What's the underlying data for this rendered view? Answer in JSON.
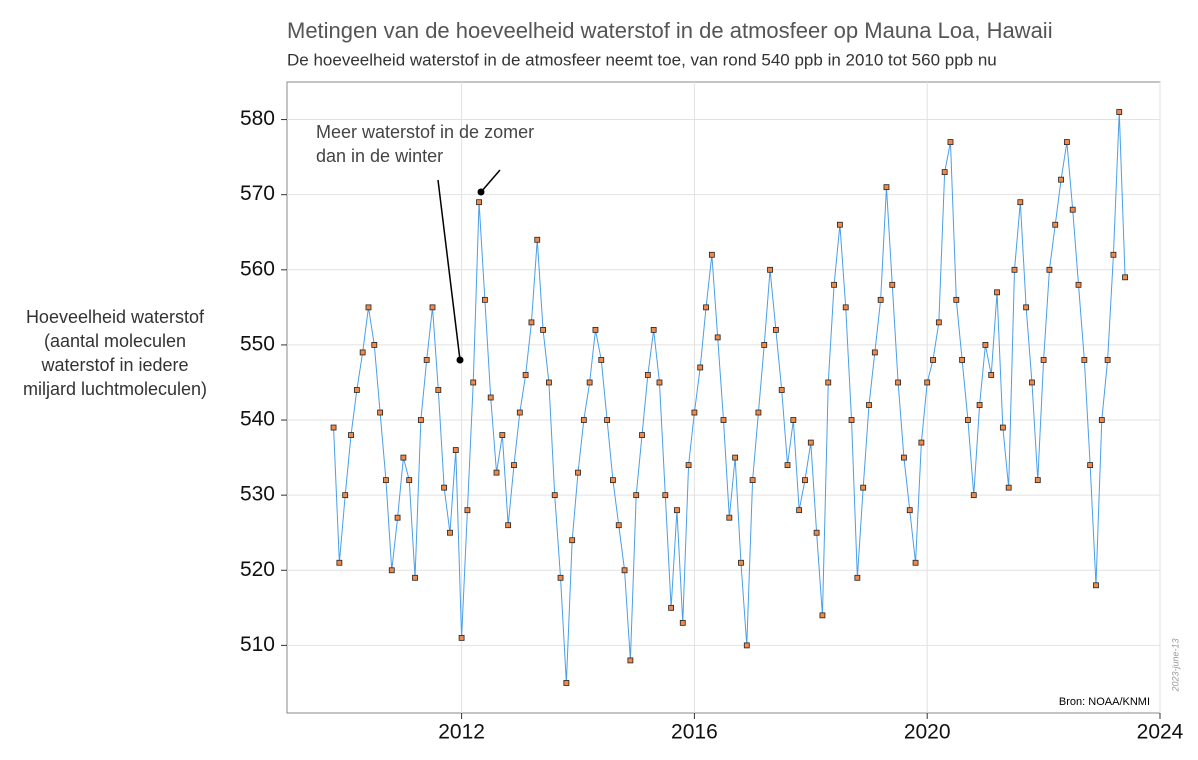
{
  "chart_data": {
    "type": "line",
    "title": "Metingen van de hoeveelheid waterstof in de atmosfeer op Mauna Loa, Hawaii",
    "subtitle": "De hoeveelheid waterstof in de atmosfeer neemt toe, van rond 540 ppb in 2010 tot 560 ppb nu",
    "y_label": [
      "Hoeveelheid waterstof",
      "(aantal moleculen",
      "waterstof in iedere",
      "miljard luchtmoleculen)"
    ],
    "annotation": [
      "Meer waterstof in de zomer",
      "dan in de winter"
    ],
    "source": "Bron: NOAA/KNMI",
    "date_note": "2023-june-13",
    "line_color": "#4a9fe8",
    "marker_color": "#f08a4b",
    "grid": true,
    "xlim": [
      2009,
      2024
    ],
    "xticks": [
      2012,
      2016,
      2020,
      2024
    ],
    "ylim": [
      501,
      585
    ],
    "yticks": [
      510,
      520,
      530,
      540,
      550,
      560,
      570,
      580
    ],
    "x": [
      2009.8,
      2009.9,
      2010.0,
      2010.1,
      2010.2,
      2010.3,
      2010.4,
      2010.5,
      2010.6,
      2010.7,
      2010.8,
      2010.9,
      2011.0,
      2011.1,
      2011.2,
      2011.3,
      2011.4,
      2011.5,
      2011.6,
      2011.7,
      2011.8,
      2011.9,
      2012.0,
      2012.1,
      2012.2,
      2012.3,
      2012.4,
      2012.5,
      2012.6,
      2012.7,
      2012.8,
      2012.9,
      2013.0,
      2013.1,
      2013.2,
      2013.3,
      2013.4,
      2013.5,
      2013.6,
      2013.7,
      2013.8,
      2013.9,
      2014.0,
      2014.1,
      2014.2,
      2014.3,
      2014.4,
      2014.5,
      2014.6,
      2014.7,
      2014.8,
      2014.9,
      2015.0,
      2015.1,
      2015.2,
      2015.3,
      2015.4,
      2015.5,
      2015.6,
      2015.7,
      2015.8,
      2015.9,
      2016.0,
      2016.1,
      2016.2,
      2016.3,
      2016.4,
      2016.5,
      2016.6,
      2016.7,
      2016.8,
      2016.9,
      2017.0,
      2017.1,
      2017.2,
      2017.3,
      2017.4,
      2017.5,
      2017.6,
      2017.7,
      2017.8,
      2017.9,
      2018.0,
      2018.1,
      2018.2,
      2018.3,
      2018.4,
      2018.5,
      2018.6,
      2018.7,
      2018.8,
      2018.9,
      2019.0,
      2019.1,
      2019.2,
      2019.3,
      2019.4,
      2019.5,
      2019.6,
      2019.7,
      2019.8,
      2019.9,
      2020.0,
      2020.1,
      2020.2,
      2020.3,
      2020.4,
      2020.5,
      2020.6,
      2020.7,
      2020.8,
      2020.9,
      2021.0,
      2021.1,
      2021.2,
      2021.3,
      2021.4,
      2021.5,
      2021.6,
      2021.7,
      2021.8,
      2021.9,
      2022.0,
      2022.1,
      2022.2,
      2022.3,
      2022.4,
      2022.5,
      2022.6,
      2022.7,
      2022.8,
      2022.9,
      2023.0,
      2023.1,
      2023.2,
      2023.3,
      2023.4
    ],
    "values": [
      539,
      521,
      530,
      538,
      544,
      549,
      555,
      550,
      541,
      532,
      520,
      527,
      535,
      532,
      519,
      540,
      548,
      555,
      544,
      531,
      525,
      536,
      511,
      528,
      545,
      569,
      556,
      543,
      533,
      538,
      526,
      534,
      541,
      546,
      553,
      564,
      552,
      545,
      530,
      519,
      505,
      524,
      533,
      540,
      545,
      552,
      548,
      540,
      532,
      526,
      520,
      508,
      530,
      538,
      546,
      552,
      545,
      530,
      515,
      528,
      513,
      534,
      541,
      547,
      555,
      562,
      551,
      540,
      527,
      535,
      521,
      510,
      532,
      541,
      550,
      560,
      552,
      544,
      534,
      540,
      528,
      532,
      537,
      525,
      514,
      545,
      558,
      566,
      555,
      540,
      519,
      531,
      542,
      549,
      556,
      571,
      558,
      545,
      535,
      528,
      521,
      537,
      545,
      548,
      553,
      573,
      577,
      556,
      548,
      540,
      530,
      542,
      550,
      546,
      557,
      539,
      531,
      560,
      569,
      555,
      545,
      532,
      548,
      560,
      566,
      572,
      577,
      568,
      558,
      548,
      534,
      518,
      540,
      548,
      562,
      581,
      559
    ]
  }
}
